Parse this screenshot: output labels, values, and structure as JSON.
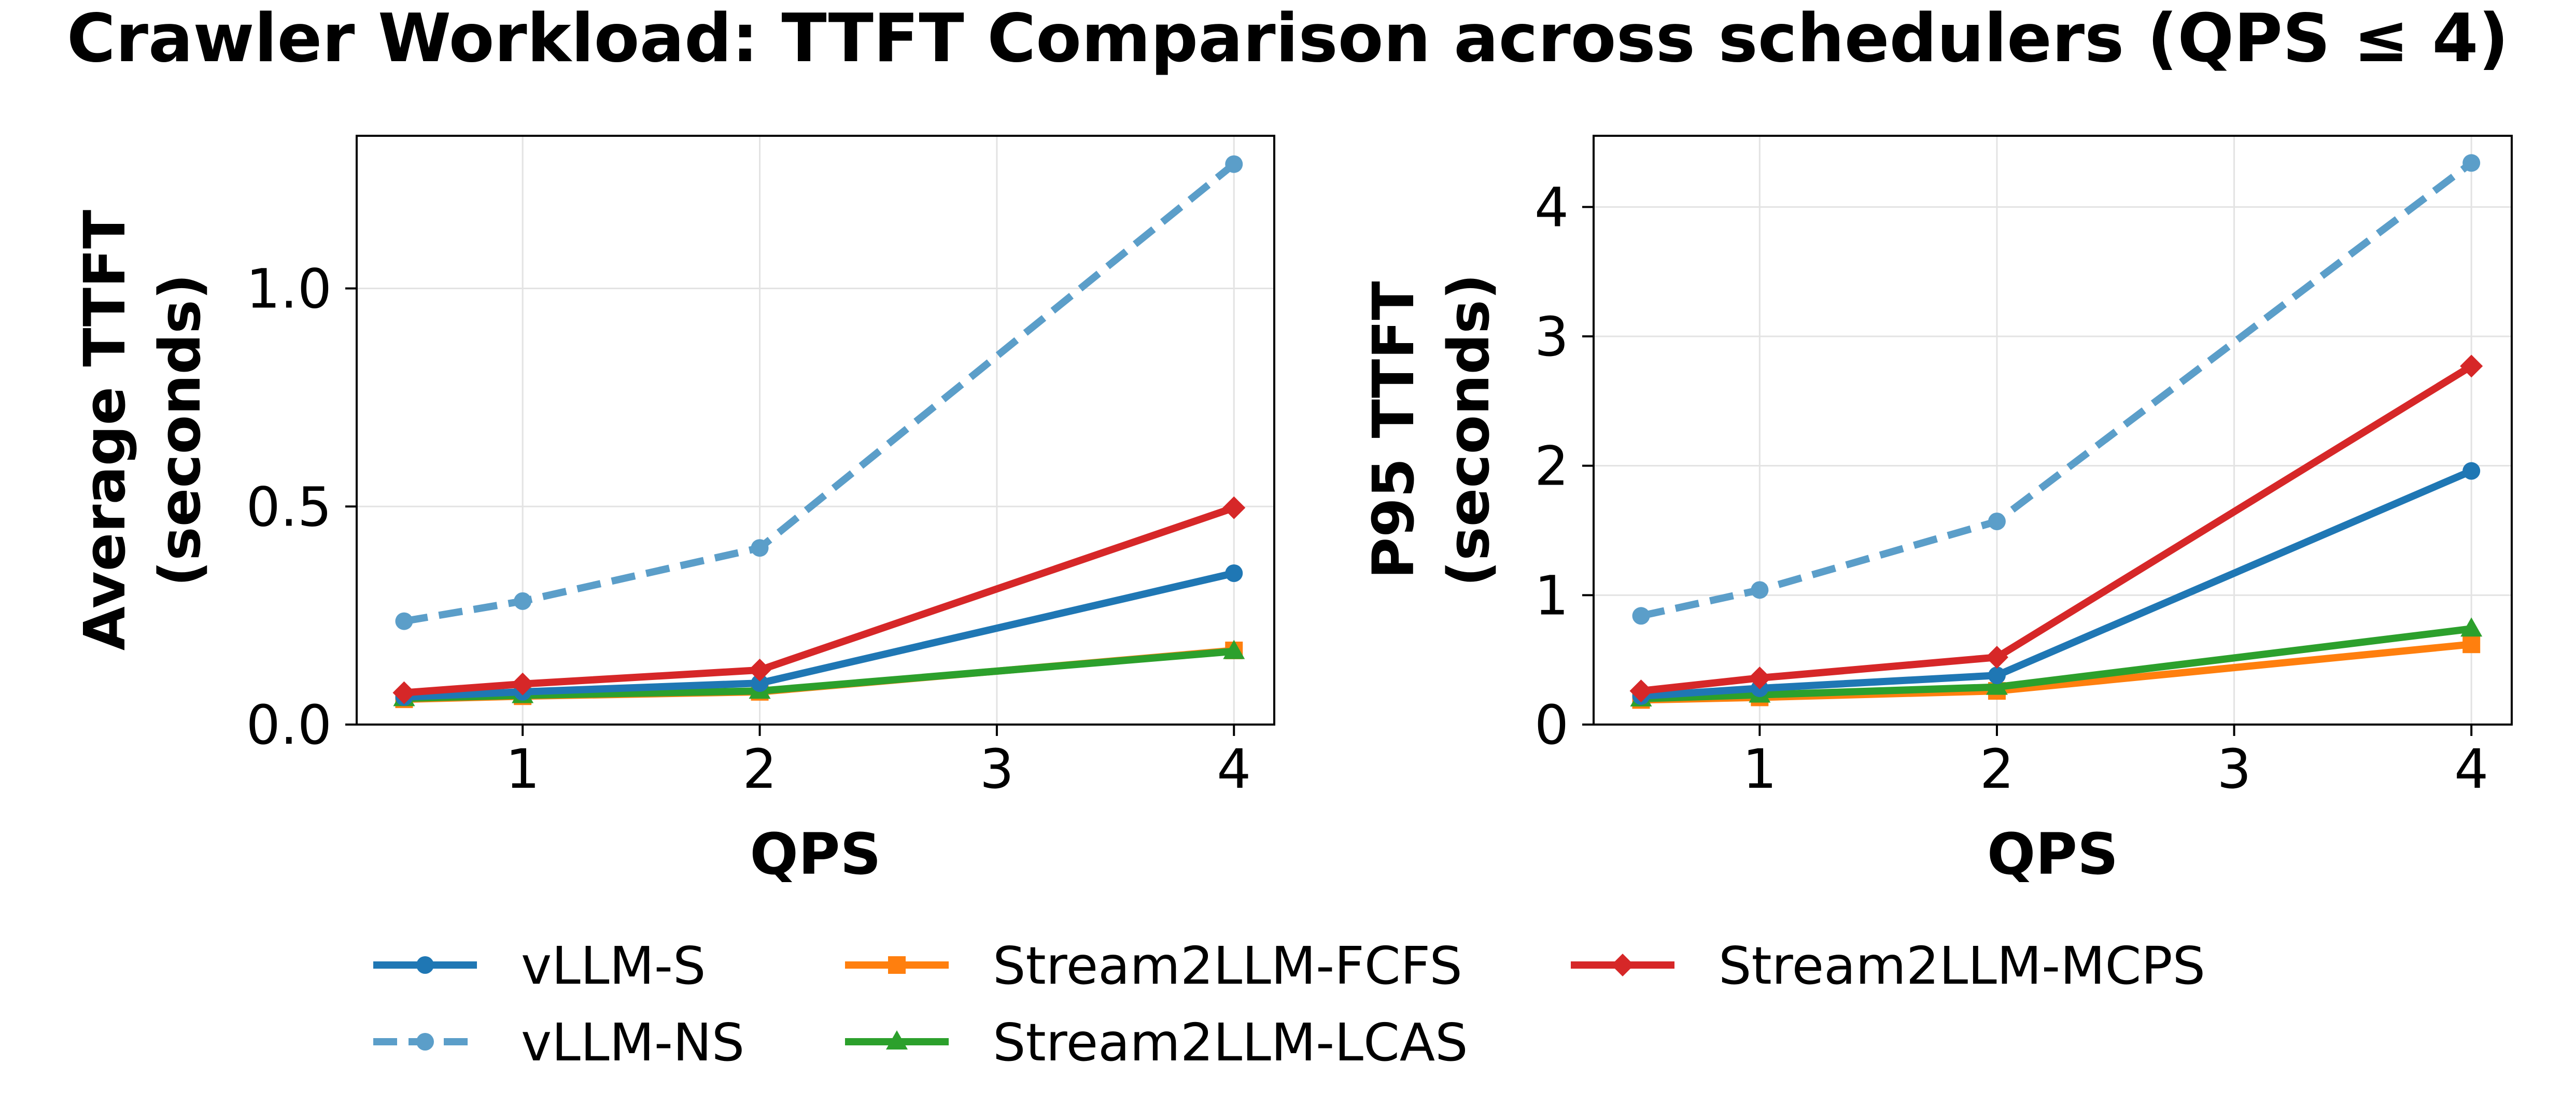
{
  "suptitle": "Crawler Workload: TTFT Comparison across schedulers (QPS ≤ 4)",
  "colors": {
    "vllm_s": "#1f77b4",
    "vllm_ns": "#5b9ec9",
    "fcfs": "#ff7f0e",
    "lcas": "#2ca02c",
    "mcps": "#d62728"
  },
  "legend": {
    "placement": "bottom-center",
    "entries": [
      {
        "label": "vLLM-S",
        "color": "#1f77b4",
        "marker": "circle",
        "dash": false
      },
      {
        "label": "vLLM-NS",
        "color": "#5b9ec9",
        "marker": "circle",
        "dash": true
      },
      {
        "label": "Stream2LLM-FCFS",
        "color": "#ff7f0e",
        "marker": "square",
        "dash": false
      },
      {
        "label": "Stream2LLM-LCAS",
        "color": "#2ca02c",
        "marker": "triangle",
        "dash": false
      },
      {
        "label": "Stream2LLM-MCPS",
        "color": "#d62728",
        "marker": "diamond",
        "dash": false
      }
    ]
  },
  "chart_data": [
    {
      "type": "line",
      "title": "",
      "xlabel": "QPS",
      "ylabel": [
        "Average TTFT",
        "(seconds)"
      ],
      "xlim": [
        0.3,
        4.17
      ],
      "ylim": [
        0,
        1.35
      ],
      "xticks": [
        1,
        2,
        3,
        4
      ],
      "yticks": [
        0.0,
        0.5,
        1.0
      ],
      "ytick_labels": [
        "0.0",
        "0.5",
        "1.0"
      ],
      "grid": true,
      "x": [
        0.5,
        1,
        2,
        4
      ],
      "series": [
        {
          "name": "vLLM-S",
          "color": "#1f77b4",
          "marker": "circle",
          "dash": false,
          "values": [
            0.063,
            0.075,
            0.095,
            0.347
          ]
        },
        {
          "name": "vLLM-NS",
          "color": "#5b9ec9",
          "marker": "circle",
          "dash": true,
          "values": [
            0.237,
            0.283,
            0.405,
            1.285
          ]
        },
        {
          "name": "Stream2LLM-FCFS",
          "color": "#ff7f0e",
          "marker": "square",
          "dash": false,
          "values": [
            0.058,
            0.065,
            0.075,
            0.17
          ]
        },
        {
          "name": "Stream2LLM-LCAS",
          "color": "#2ca02c",
          "marker": "triangle",
          "dash": false,
          "values": [
            0.06,
            0.067,
            0.077,
            0.168
          ]
        },
        {
          "name": "Stream2LLM-MCPS",
          "color": "#d62728",
          "marker": "diamond",
          "dash": false,
          "values": [
            0.073,
            0.093,
            0.125,
            0.497
          ]
        }
      ]
    },
    {
      "type": "line",
      "title": "",
      "xlabel": "QPS",
      "ylabel": [
        "P95 TTFT",
        "(seconds)"
      ],
      "xlim": [
        0.3,
        4.17
      ],
      "ylim": [
        0,
        4.55
      ],
      "xticks": [
        1,
        2,
        3,
        4
      ],
      "yticks": [
        0,
        1,
        2,
        3,
        4
      ],
      "ytick_labels": [
        "0",
        "1",
        "2",
        "3",
        "4"
      ],
      "grid": true,
      "x": [
        0.5,
        1,
        2,
        4
      ],
      "series": [
        {
          "name": "vLLM-S",
          "color": "#1f77b4",
          "marker": "circle",
          "dash": false,
          "values": [
            0.22,
            0.28,
            0.38,
            1.96
          ]
        },
        {
          "name": "vLLM-NS",
          "color": "#5b9ec9",
          "marker": "circle",
          "dash": true,
          "values": [
            0.84,
            1.04,
            1.57,
            4.34
          ]
        },
        {
          "name": "Stream2LLM-FCFS",
          "color": "#ff7f0e",
          "marker": "square",
          "dash": false,
          "values": [
            0.19,
            0.21,
            0.26,
            0.62
          ]
        },
        {
          "name": "Stream2LLM-LCAS",
          "color": "#2ca02c",
          "marker": "triangle",
          "dash": false,
          "values": [
            0.2,
            0.23,
            0.29,
            0.74
          ]
        },
        {
          "name": "Stream2LLM-MCPS",
          "color": "#d62728",
          "marker": "diamond",
          "dash": false,
          "values": [
            0.26,
            0.36,
            0.52,
            2.77
          ]
        }
      ]
    }
  ]
}
